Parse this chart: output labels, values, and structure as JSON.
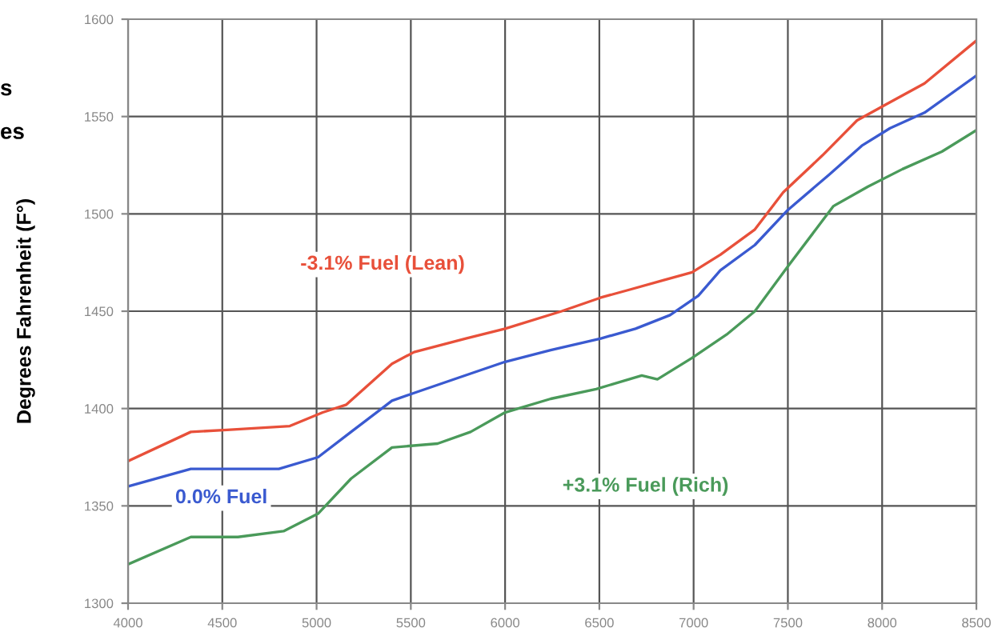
{
  "chart_data": {
    "type": "line",
    "ylabel": "Degrees Fahrenheit (F°)",
    "xlim": [
      4000,
      8500
    ],
    "xticks": [
      4000,
      4500,
      5000,
      5500,
      6000,
      6500,
      7000,
      7500,
      8000,
      8500
    ],
    "ylim": [
      1300,
      1600
    ],
    "yticks": [
      1300,
      1350,
      1400,
      1450,
      1500,
      1550,
      1600
    ],
    "grid": true,
    "legend": false,
    "marker": "none",
    "line_style": "solid",
    "series": [
      {
        "name": "-3.1% Fuel (Lean)",
        "color": "#e8503a",
        "x": [
          4000,
          4333,
          4525,
          4858,
          5033,
          5158,
          5400,
          5517,
          5792,
          6000,
          6300,
          6508,
          6658,
          6842,
          6992,
          7142,
          7325,
          7475,
          7683,
          7867,
          8017,
          8225,
          8500
        ],
        "values": [
          1373,
          1388,
          1389,
          1391,
          1398,
          1402,
          1423,
          1429,
          1436,
          1441,
          1450,
          1457,
          1461,
          1466,
          1470,
          1479,
          1492,
          1511,
          1530,
          1548,
          1556,
          1567,
          1589
        ]
      },
      {
        "name": "0.0% Fuel",
        "color": "#3a5ad0",
        "x": [
          4000,
          4333,
          4800,
          5008,
          5183,
          5400,
          5517,
          5758,
          6000,
          6242,
          6508,
          6692,
          6875,
          7025,
          7142,
          7325,
          7500,
          7717,
          7892,
          8042,
          8225,
          8500
        ],
        "values": [
          1360,
          1369,
          1369,
          1375,
          1388,
          1404,
          1408,
          1416,
          1424,
          1430,
          1436,
          1441,
          1448,
          1458,
          1471,
          1484,
          1502,
          1520,
          1535,
          1544,
          1552,
          1571
        ]
      },
      {
        "name": "+3.1% Fuel (Rich)",
        "color": "#4a9a5a",
        "x": [
          4000,
          4333,
          4583,
          4825,
          5008,
          5183,
          5400,
          5642,
          5817,
          6000,
          6242,
          6483,
          6725,
          6808,
          6992,
          7175,
          7325,
          7500,
          7742,
          7925,
          8108,
          8317,
          8500
        ],
        "values": [
          1320,
          1334,
          1334,
          1337,
          1346,
          1364,
          1380,
          1382,
          1388,
          1398,
          1405,
          1410,
          1417,
          1415,
          1426,
          1438,
          1450,
          1473,
          1504,
          1514,
          1523,
          1532,
          1543
        ]
      }
    ],
    "annotations": [
      "s",
      "es"
    ]
  }
}
